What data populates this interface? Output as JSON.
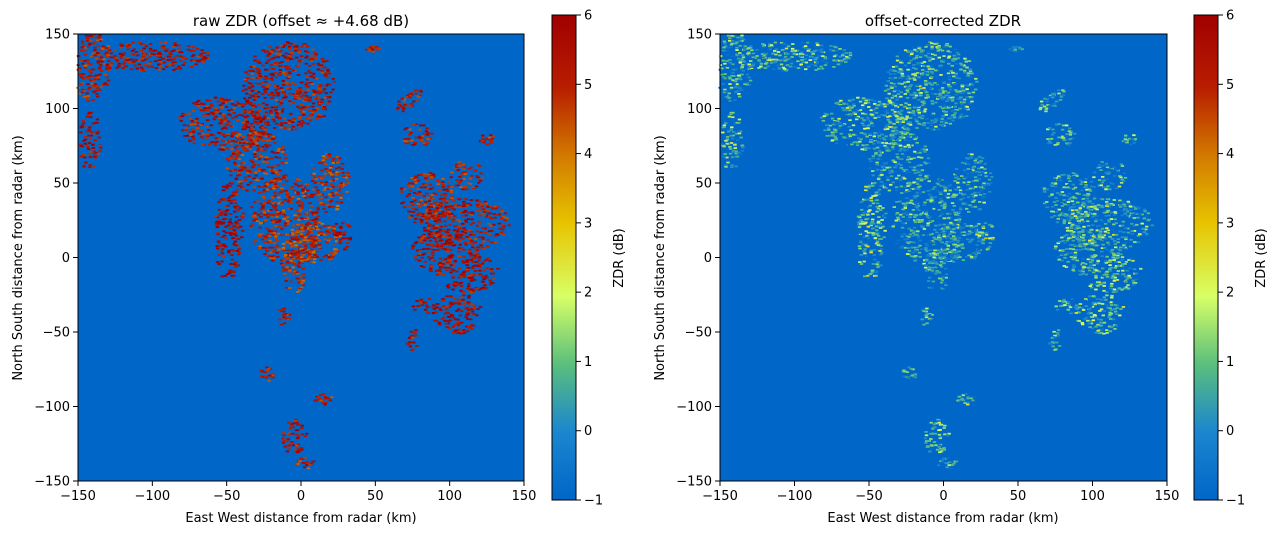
{
  "colormap": {
    "name": "radar-zdr",
    "stops": [
      [
        0.0,
        "#0066c8"
      ],
      [
        0.14,
        "#1b86cf"
      ],
      [
        0.28,
        "#5abf7c"
      ],
      [
        0.42,
        "#d8ff66"
      ],
      [
        0.57,
        "#e7c400"
      ],
      [
        0.71,
        "#d27a00"
      ],
      [
        0.85,
        "#b81d00"
      ],
      [
        1.0,
        "#a00000"
      ]
    ],
    "background": "#0066c8"
  },
  "chart_data": [
    {
      "type": "heatmap",
      "title": "raw ZDR  (offset ≈ +4.68 dB)",
      "xlabel": "East West distance from radar (km)",
      "ylabel": "North South distance from radar (km)",
      "xlim": [
        -150,
        150
      ],
      "ylim": [
        -150,
        150
      ],
      "xticks": [
        -150,
        -100,
        -50,
        0,
        50,
        100,
        150
      ],
      "yticks": [
        -150,
        -100,
        -50,
        0,
        50,
        100,
        150
      ],
      "colorbar": {
        "label": "ZDR (dB)",
        "range": [
          -1,
          6
        ],
        "ticks": [
          -1,
          0,
          1,
          2,
          3,
          4,
          5,
          6
        ]
      },
      "offset_db": 4.68,
      "field_range": [
        -1,
        6
      ],
      "cells": [
        {
          "x": -140,
          "y": 128,
          "w": 12,
          "h": 24,
          "v": 5.2,
          "tilt": 0.2
        },
        {
          "x": -142,
          "y": 78,
          "w": 7,
          "h": 20,
          "v": 5.5,
          "tilt": 0.1
        },
        {
          "x": -100,
          "y": 135,
          "w": 40,
          "h": 10,
          "v": 5.4,
          "tilt": 0
        },
        {
          "x": -8,
          "y": 115,
          "w": 30,
          "h": 30,
          "v": 5.3,
          "tilt": 0
        },
        {
          "x": 48,
          "y": 140,
          "w": 4,
          "h": 2,
          "v": 5.0,
          "tilt": 0
        },
        {
          "x": -52,
          "y": 90,
          "w": 30,
          "h": 18,
          "v": 5.3,
          "tilt": 0
        },
        {
          "x": -30,
          "y": 65,
          "w": 20,
          "h": 22,
          "v": 5.1,
          "tilt": 0
        },
        {
          "x": 20,
          "y": 50,
          "w": 12,
          "h": 20,
          "v": 4.9,
          "tilt": 0
        },
        {
          "x": -48,
          "y": 20,
          "w": 9,
          "h": 35,
          "v": 5.6,
          "tilt": 0.3
        },
        {
          "x": -10,
          "y": 25,
          "w": 24,
          "h": 30,
          "v": 5.0,
          "tilt": 0
        },
        {
          "x": 10,
          "y": 10,
          "w": 18,
          "h": 14,
          "v": 4.9,
          "tilt": 0
        },
        {
          "x": 28,
          "y": 15,
          "w": 6,
          "h": 10,
          "v": 5.8,
          "tilt": 0
        },
        {
          "x": -5,
          "y": -10,
          "w": 8,
          "h": 15,
          "v": 5.0,
          "tilt": 0
        },
        {
          "x": -12,
          "y": -40,
          "w": 5,
          "h": 6,
          "v": 5.2,
          "tilt": 0
        },
        {
          "x": 72,
          "y": 105,
          "w": 10,
          "h": 6,
          "v": 5.2,
          "tilt": 0.5
        },
        {
          "x": 78,
          "y": 82,
          "w": 10,
          "h": 8,
          "v": 5.2,
          "tilt": 0
        },
        {
          "x": 125,
          "y": 80,
          "w": 4,
          "h": 6,
          "v": 5.2,
          "tilt": 0
        },
        {
          "x": 85,
          "y": 40,
          "w": 18,
          "h": 18,
          "v": 5.2,
          "tilt": 0
        },
        {
          "x": 112,
          "y": 55,
          "w": 10,
          "h": 10,
          "v": 5.2,
          "tilt": 0
        },
        {
          "x": 110,
          "y": 22,
          "w": 30,
          "h": 18,
          "v": 5.3,
          "tilt": 0
        },
        {
          "x": 92,
          "y": 5,
          "w": 16,
          "h": 15,
          "v": 5.4,
          "tilt": 0
        },
        {
          "x": 112,
          "y": -10,
          "w": 20,
          "h": 14,
          "v": 5.5,
          "tilt": 0
        },
        {
          "x": 105,
          "y": -38,
          "w": 16,
          "h": 14,
          "v": 5.6,
          "tilt": 0
        },
        {
          "x": 82,
          "y": -32,
          "w": 6,
          "h": 6,
          "v": 5.6,
          "tilt": 0
        },
        {
          "x": 75,
          "y": -55,
          "w": 4,
          "h": 8,
          "v": 5.3,
          "tilt": 0
        },
        {
          "x": -22,
          "y": -78,
          "w": 5,
          "h": 5,
          "v": 5.2,
          "tilt": 0
        },
        {
          "x": 15,
          "y": -95,
          "w": 6,
          "h": 4,
          "v": 5.1,
          "tilt": 0
        },
        {
          "x": -5,
          "y": -120,
          "w": 8,
          "h": 12,
          "v": 5.3,
          "tilt": 0
        },
        {
          "x": 2,
          "y": -138,
          "w": 6,
          "h": 4,
          "v": 5.1,
          "tilt": 0
        }
      ]
    },
    {
      "type": "heatmap",
      "title": "offset-corrected ZDR",
      "xlabel": "East West distance from radar (km)",
      "ylabel": "North South distance from radar (km)",
      "xlim": [
        -150,
        150
      ],
      "ylim": [
        -150,
        150
      ],
      "xticks": [
        -150,
        -100,
        -50,
        0,
        50,
        100,
        150
      ],
      "yticks": [
        -150,
        -100,
        -50,
        0,
        50,
        100,
        150
      ],
      "colorbar": {
        "label": "ZDR (dB)",
        "range": [
          -1,
          6
        ],
        "ticks": [
          -1,
          0,
          1,
          2,
          3,
          4,
          5,
          6
        ]
      },
      "offset_db": 0,
      "field_range": [
        -1,
        6
      ]
    }
  ]
}
